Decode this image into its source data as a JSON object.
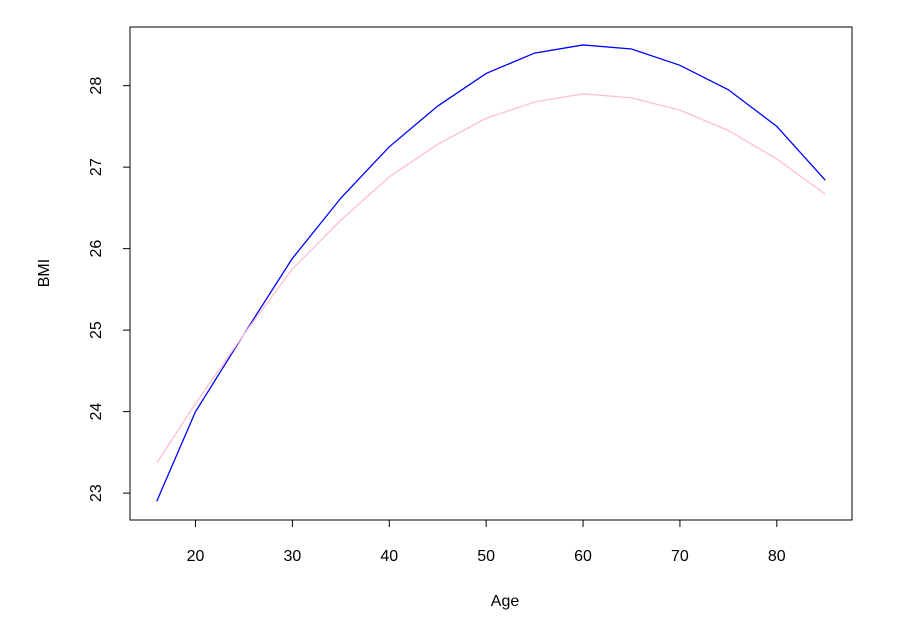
{
  "chart_data": {
    "type": "line",
    "x_label": "Age",
    "y_label": "BMI",
    "x": [
      16,
      20,
      25,
      30,
      35,
      40,
      45,
      50,
      55,
      60,
      65,
      70,
      75,
      80,
      85
    ],
    "series": [
      {
        "color": "#0000ff",
        "values": [
          22.9,
          24.0,
          24.95,
          25.88,
          26.62,
          27.25,
          27.75,
          28.15,
          28.4,
          28.5,
          28.45,
          28.25,
          27.95,
          27.5,
          26.84
        ]
      },
      {
        "color": "#ffc0cb",
        "values": [
          23.37,
          24.1,
          24.95,
          25.75,
          26.35,
          26.88,
          27.28,
          27.6,
          27.8,
          27.9,
          27.85,
          27.7,
          27.45,
          27.1,
          26.67
        ]
      }
    ],
    "xlim": [
      13.24,
      87.76
    ],
    "ylim": [
      22.67,
      28.72
    ],
    "xticks": [
      20,
      30,
      40,
      50,
      60,
      70,
      80
    ],
    "yticks": [
      23,
      24,
      25,
      26,
      27,
      28
    ]
  }
}
